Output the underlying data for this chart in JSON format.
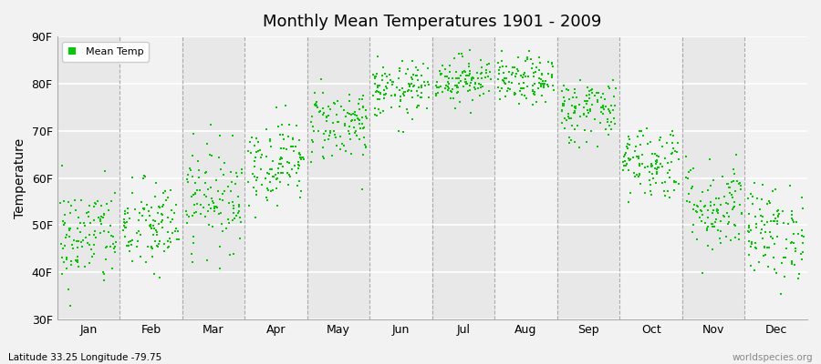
{
  "title": "Monthly Mean Temperatures 1901 - 2009",
  "ylabel": "Temperature",
  "xlabel_bottom": "Latitude 33.25 Longitude -79.75",
  "watermark": "worldspecies.org",
  "legend_label": "Mean Temp",
  "dot_color": "#00cc00",
  "background_color": "#f2f2f2",
  "plot_bg_color": "#f2f2f2",
  "band_color_odd": "#e8e8e8",
  "band_color_even": "#f2f2f2",
  "ylim": [
    30,
    90
  ],
  "yticks": [
    30,
    40,
    50,
    60,
    70,
    80,
    90
  ],
  "ytick_labels": [
    "30F",
    "40F",
    "50F",
    "60F",
    "70F",
    "80F",
    "90F"
  ],
  "months": [
    "Jan",
    "Feb",
    "Mar",
    "Apr",
    "May",
    "Jun",
    "Jul",
    "Aug",
    "Sep",
    "Oct",
    "Nov",
    "Dec"
  ],
  "month_centers": [
    1,
    2,
    3,
    4,
    5,
    6,
    7,
    8,
    9,
    10,
    11,
    12
  ],
  "month_boundaries": [
    1.5,
    2.5,
    3.5,
    4.5,
    5.5,
    6.5,
    7.5,
    8.5,
    9.5,
    10.5,
    11.5
  ],
  "seed": 42,
  "n_points_per_month": 109,
  "mean_temps": [
    47.5,
    49.5,
    56.0,
    63.5,
    71.5,
    78.5,
    81.0,
    80.5,
    74.5,
    63.5,
    54.0,
    48.5
  ],
  "std_temps": [
    5.5,
    5.0,
    5.5,
    4.5,
    4.0,
    3.0,
    2.5,
    2.5,
    3.5,
    4.0,
    5.0,
    5.0
  ],
  "marker_size": 2,
  "dpi": 100,
  "fig_width": 9.0,
  "fig_height": 4.0
}
